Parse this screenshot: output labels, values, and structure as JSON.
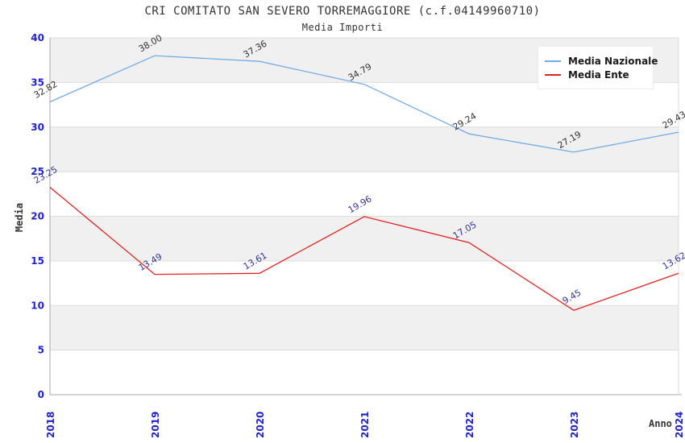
{
  "header": {
    "title": "CRI COMITATO SAN SEVERO TORREMAGGIORE (c.f.04149960710)",
    "subtitle": "Media Importi"
  },
  "chart_data": {
    "type": "line",
    "x": [
      "2018",
      "2019",
      "2020",
      "2021",
      "2022",
      "2023",
      "2024"
    ],
    "xlabel": "Anno",
    "ylabel": "Media",
    "ylim": [
      0,
      40
    ],
    "ytick_step": 5,
    "yticks": [
      0,
      5,
      10,
      15,
      20,
      25,
      30,
      35,
      40
    ],
    "grid": "horizontal-bands",
    "legend_position": "top-right",
    "series": [
      {
        "name": "Media Nazionale",
        "color": "#73ABE2",
        "label_color": "#333333",
        "values": [
          32.82,
          38.0,
          37.36,
          34.79,
          29.24,
          27.19,
          29.43
        ]
      },
      {
        "name": "Media Ente",
        "color": "#E02222",
        "label_color": "#333399",
        "values": [
          23.25,
          13.49,
          13.61,
          19.96,
          17.05,
          9.45,
          13.62
        ]
      }
    ],
    "colors": {
      "axis_tick_text": "#2222CC",
      "band_gray": "#F0F0F0",
      "band_white": "#FFFFFF",
      "gridline": "#DCDCDC",
      "spine": "#AAAAAA",
      "title_text": "#333333"
    }
  }
}
